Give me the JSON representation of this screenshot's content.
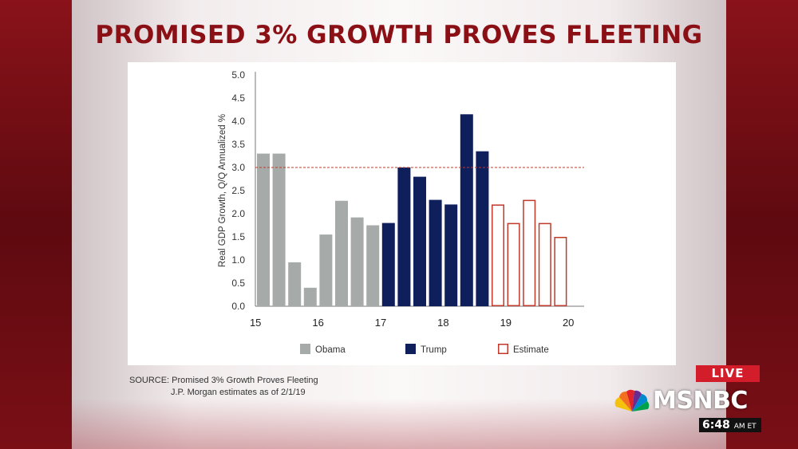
{
  "title": "PROMISED 3% GROWTH PROVES FLEETING",
  "source": {
    "line1": "SOURCE: Promised 3% Growth Proves Fleeting",
    "line2": "J.P. Morgan estimates as of 2/1/19"
  },
  "broadcast": {
    "live_label": "LIVE",
    "network": "MSNBC",
    "time": "6:48",
    "time_suffix": "AM ET"
  },
  "colors": {
    "obama": "#a6aba9",
    "trump": "#0e1f5b",
    "estimate": "#c0392b",
    "title": "#8b1016",
    "live": "#d31d2a"
  },
  "chart_data": {
    "type": "bar",
    "title": "",
    "xlabel": "",
    "ylabel": "Real GDP Growth, Q/Q Annualized %",
    "ylim": [
      0,
      5
    ],
    "yticks": [
      "0.0",
      "0.5",
      "1.0",
      "1.5",
      "2.0",
      "2.5",
      "3.0",
      "3.5",
      "4.0",
      "4.5",
      "5.0"
    ],
    "xticks": [
      "15",
      "16",
      "17",
      "18",
      "19",
      "20"
    ],
    "reference_line": 3.0,
    "legend": [
      "Obama",
      "Trump",
      "Estimate"
    ],
    "bars": [
      {
        "period": "15Q1",
        "value": 3.3,
        "series": "Obama"
      },
      {
        "period": "15Q2",
        "value": 3.3,
        "series": "Obama"
      },
      {
        "period": "15Q3",
        "value": 0.95,
        "series": "Obama"
      },
      {
        "period": "15Q4",
        "value": 0.4,
        "series": "Obama"
      },
      {
        "period": "16Q1",
        "value": 1.55,
        "series": "Obama"
      },
      {
        "period": "16Q2",
        "value": 2.28,
        "series": "Obama"
      },
      {
        "period": "16Q3",
        "value": 1.92,
        "series": "Obama"
      },
      {
        "period": "16Q4",
        "value": 1.75,
        "series": "Obama"
      },
      {
        "period": "17Q1",
        "value": 1.8,
        "series": "Trump"
      },
      {
        "period": "17Q2",
        "value": 3.0,
        "series": "Trump"
      },
      {
        "period": "17Q3",
        "value": 2.8,
        "series": "Trump"
      },
      {
        "period": "17Q4",
        "value": 2.3,
        "series": "Trump"
      },
      {
        "period": "18Q1",
        "value": 2.2,
        "series": "Trump"
      },
      {
        "period": "18Q2",
        "value": 4.15,
        "series": "Trump"
      },
      {
        "period": "18Q3",
        "value": 3.35,
        "series": "Trump"
      },
      {
        "period": "18Q4",
        "value": 2.2,
        "series": "Estimate"
      },
      {
        "period": "19Q1",
        "value": 1.8,
        "series": "Estimate"
      },
      {
        "period": "19Q2",
        "value": 2.3,
        "series": "Estimate"
      },
      {
        "period": "19Q3",
        "value": 1.8,
        "series": "Estimate"
      },
      {
        "period": "19Q4",
        "value": 1.5,
        "series": "Estimate"
      }
    ]
  }
}
